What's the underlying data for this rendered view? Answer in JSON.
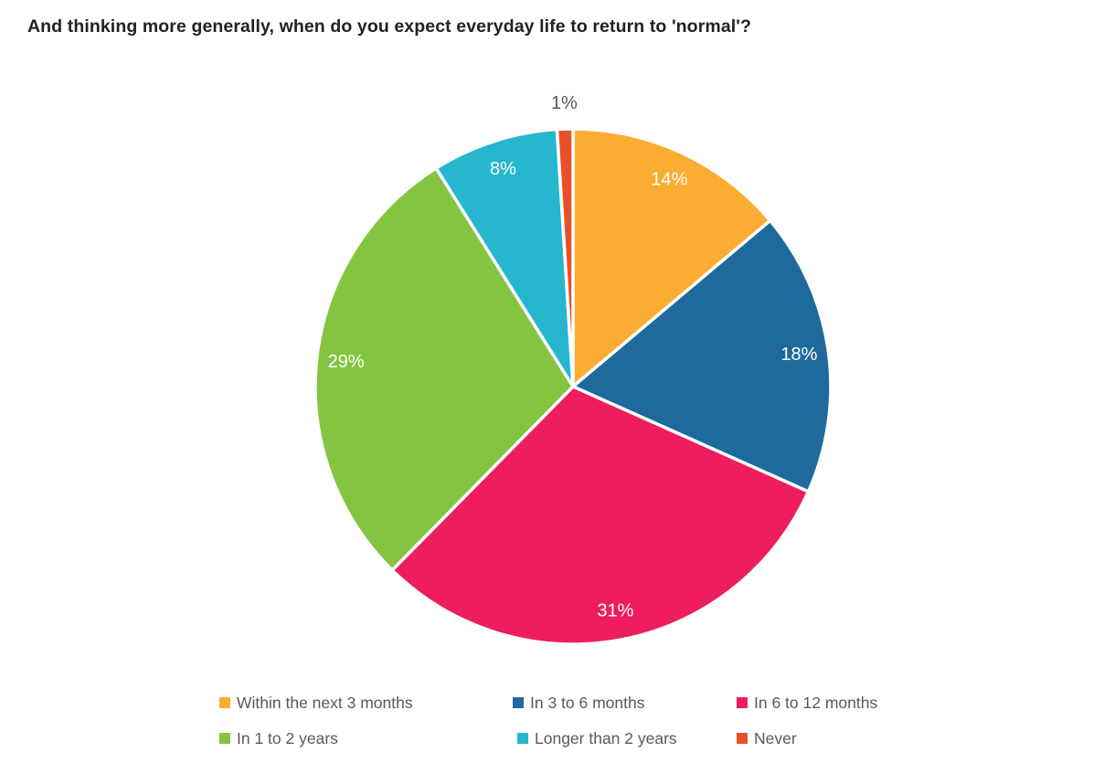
{
  "title": "And thinking more generally, when do you expect everyday life to return to 'normal'?",
  "colors": {
    "background": "#ffffff",
    "title_text": "#222222",
    "inside_label": "#ffffff",
    "outside_label": "#58595b",
    "legend_text": "#58595b",
    "slice_border": "#ffffff"
  },
  "chart_data": {
    "type": "pie",
    "title": "And thinking more generally, when do you expect everyday life to return to 'normal'?",
    "legend_position": "bottom",
    "start_angle_deg": 0,
    "direction": "clockwise",
    "slices": [
      {
        "label": "Within the next 3 months",
        "value": 14,
        "display": "14%",
        "color": "#FBAD33"
      },
      {
        "label": "In 3 to 6 months",
        "value": 18,
        "display": "18%",
        "color": "#1E6A9C"
      },
      {
        "label": "In 6 to 12 months",
        "value": 31,
        "display": "31%",
        "color": "#EE1D5D"
      },
      {
        "label": "In 1 to 2 years",
        "value": 29,
        "display": "29%",
        "color": "#85C441"
      },
      {
        "label": "Longer than 2 years",
        "value": 8,
        "display": "8%",
        "color": "#26B7CE"
      },
      {
        "label": "Never",
        "value": 1,
        "display": "1%",
        "color": "#E8502A"
      }
    ]
  }
}
